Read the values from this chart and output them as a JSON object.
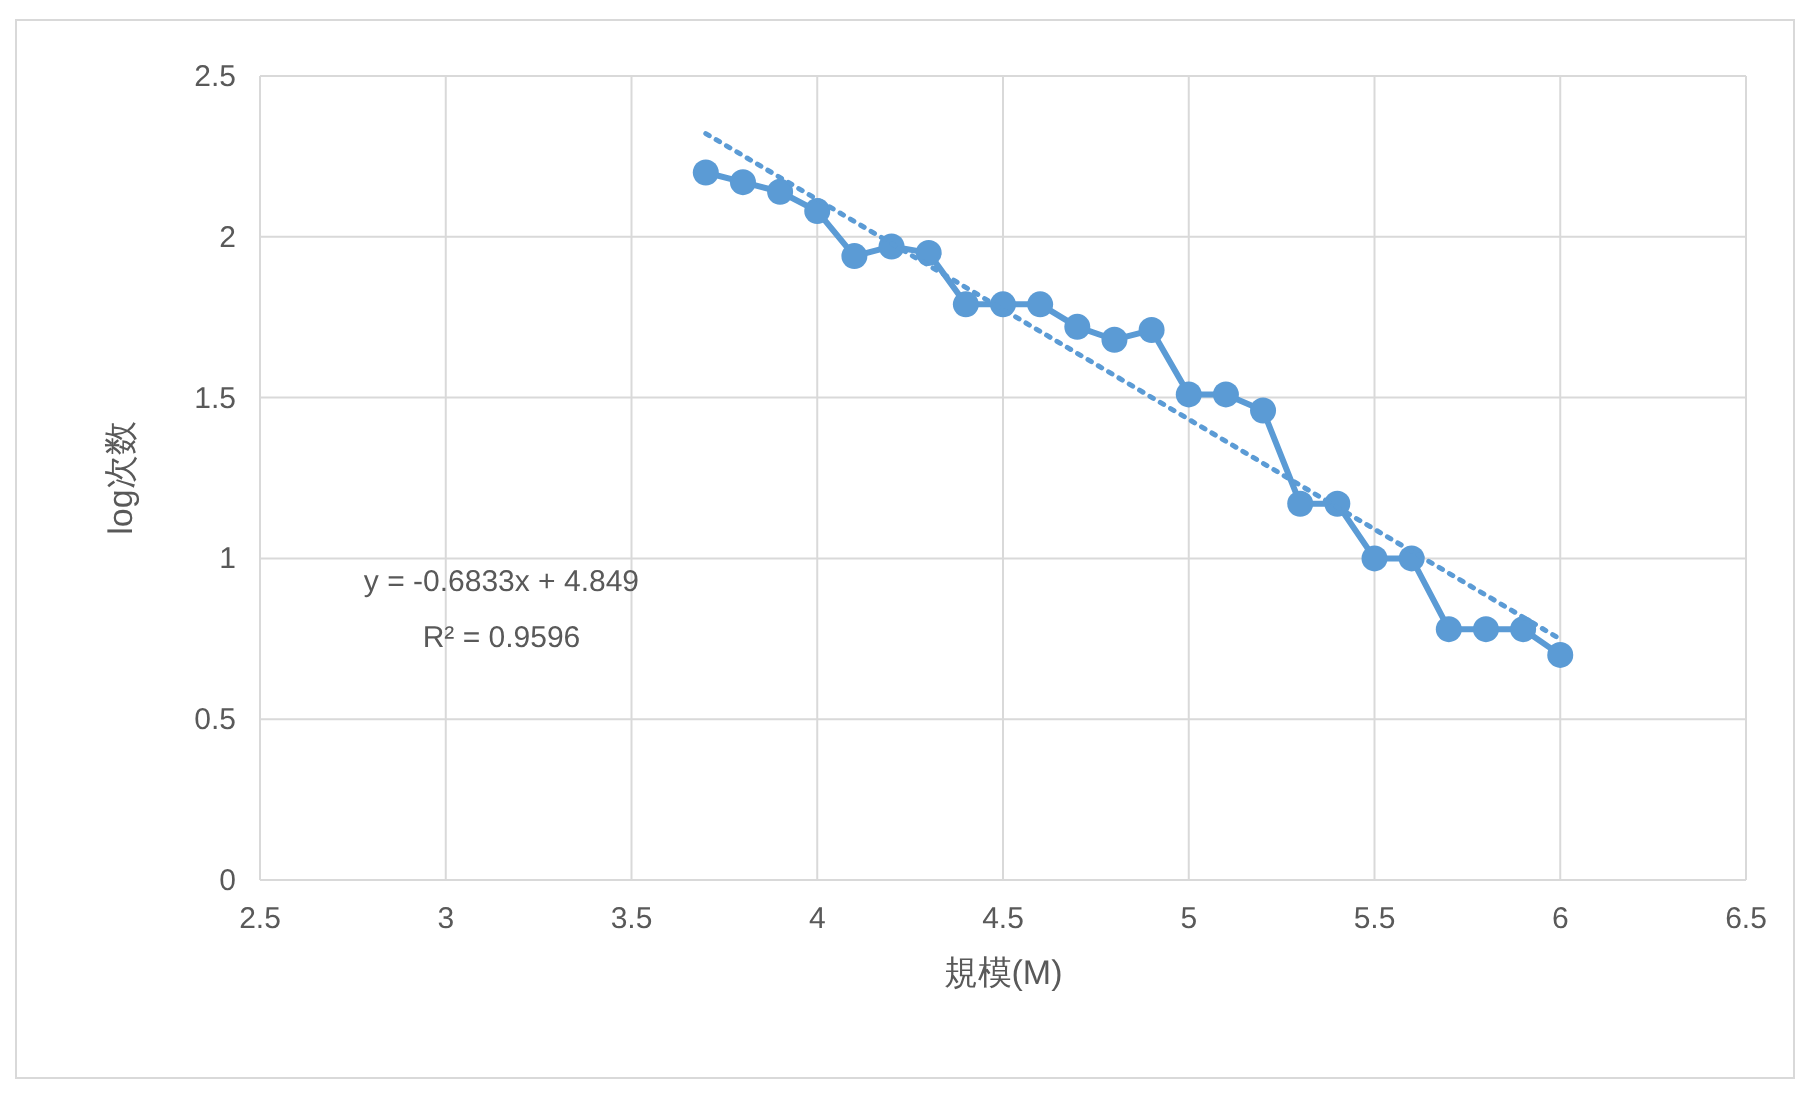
{
  "chart_data": {
    "type": "line",
    "xlabel": "規模(M)",
    "ylabel": "log次数",
    "xlim": [
      2.5,
      6.5
    ],
    "xticks": [
      2.5,
      3,
      3.5,
      4,
      4.5,
      5,
      5.5,
      6,
      6.5
    ],
    "ylim": [
      0,
      2.5
    ],
    "yticks": [
      0,
      0.5,
      1,
      1.5,
      2,
      2.5
    ],
    "grid": true,
    "series": [
      {
        "type": "line",
        "color": "#5b9bd5",
        "marker": "circle",
        "line_style": "solid",
        "x": [
          3.7,
          3.8,
          3.9,
          4.0,
          4.1,
          4.2,
          4.3,
          4.4,
          4.5,
          4.6,
          4.7,
          4.8,
          4.9,
          5.0,
          5.1,
          5.2,
          5.3,
          5.4,
          5.5,
          5.6,
          5.7,
          5.8,
          5.9,
          6.0
        ],
        "values": [
          2.2,
          2.17,
          2.14,
          2.08,
          1.94,
          1.97,
          1.95,
          1.79,
          1.79,
          1.79,
          1.72,
          1.68,
          1.71,
          1.51,
          1.51,
          1.46,
          1.17,
          1.17,
          1.0,
          1.0,
          0.78,
          0.78,
          0.78,
          0.7
        ]
      },
      {
        "type": "line",
        "color": "#5b9bd5",
        "marker": "none",
        "line_style": "dotted",
        "x": [
          3.7,
          6.0
        ],
        "values": [
          2.321,
          0.749
        ]
      }
    ],
    "annotations": [
      "y = -0.6833x + 4.849",
      "R² = 0.9596"
    ]
  }
}
